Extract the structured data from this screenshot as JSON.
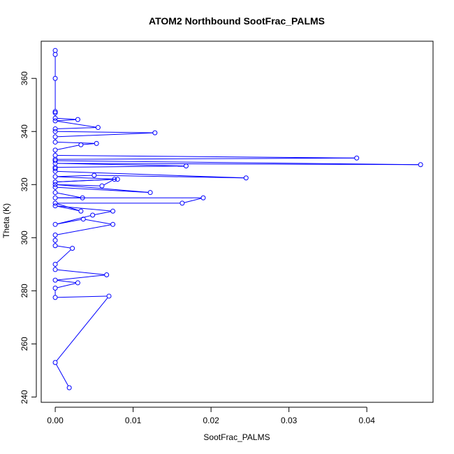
{
  "chart_data": {
    "type": "line",
    "title": "ATOM2 Northbound SootFrac_PALMS",
    "xlabel": "SootFrac_PALMS",
    "ylabel": "Theta (K)",
    "xlim": [
      -0.0018,
      0.0485
    ],
    "ylim": [
      238,
      374
    ],
    "x_ticks": [
      0.0,
      0.01,
      0.02,
      0.03,
      0.04
    ],
    "x_tick_labels": [
      "0.00",
      "0.01",
      "0.02",
      "0.03",
      "0.04"
    ],
    "y_ticks": [
      240,
      260,
      280,
      300,
      320,
      340,
      360
    ],
    "y_tick_labels": [
      "240",
      "260",
      "280",
      "300",
      "320",
      "340",
      "360"
    ],
    "grid": false,
    "series": [
      {
        "color": "#0000ff",
        "marker": "open-circle",
        "x": [
          0.0018,
          0.0,
          0.0069,
          0.0,
          0.0,
          0.0029,
          0.0,
          0.0066,
          0.0,
          0.0,
          0.0022,
          0.0,
          0.0,
          0.0,
          0.0074,
          0.0036,
          0.0,
          0.0048,
          0.0074,
          0.0,
          0.0033,
          0.0,
          0.0163,
          0.019,
          0.0,
          0.0035,
          0.0,
          0.0,
          0.0122,
          0.0,
          0.006,
          0.0076,
          0.0,
          0.008,
          0.0,
          0.005,
          0.0245,
          0.0,
          0.0,
          0.0,
          0.0168,
          0.0,
          0.0469,
          0.0,
          0.0,
          0.0387,
          0.0,
          0.0,
          0.0033,
          0.0053,
          0.0,
          0.0,
          0.0128,
          0.0,
          0.0,
          0.0055,
          0.0,
          0.0029,
          0.0,
          0.0,
          0.0,
          0.0,
          0.0,
          0.0
        ],
        "y": [
          243.5,
          253,
          278,
          277.5,
          281,
          283,
          284,
          286,
          288,
          290,
          296,
          297,
          299,
          301,
          305,
          307,
          305,
          308.5,
          310,
          312,
          310,
          313,
          313,
          315,
          315,
          315,
          317,
          319,
          317,
          320,
          319.5,
          322,
          321,
          322,
          323,
          323.5,
          322.5,
          325,
          326,
          326.5,
          327,
          328,
          327.5,
          329,
          329.5,
          330,
          331,
          333,
          335,
          335.5,
          336,
          338,
          339.5,
          340,
          341,
          341.5,
          344,
          344.5,
          345,
          347,
          347.5,
          360,
          369,
          370.5
        ]
      }
    ]
  }
}
